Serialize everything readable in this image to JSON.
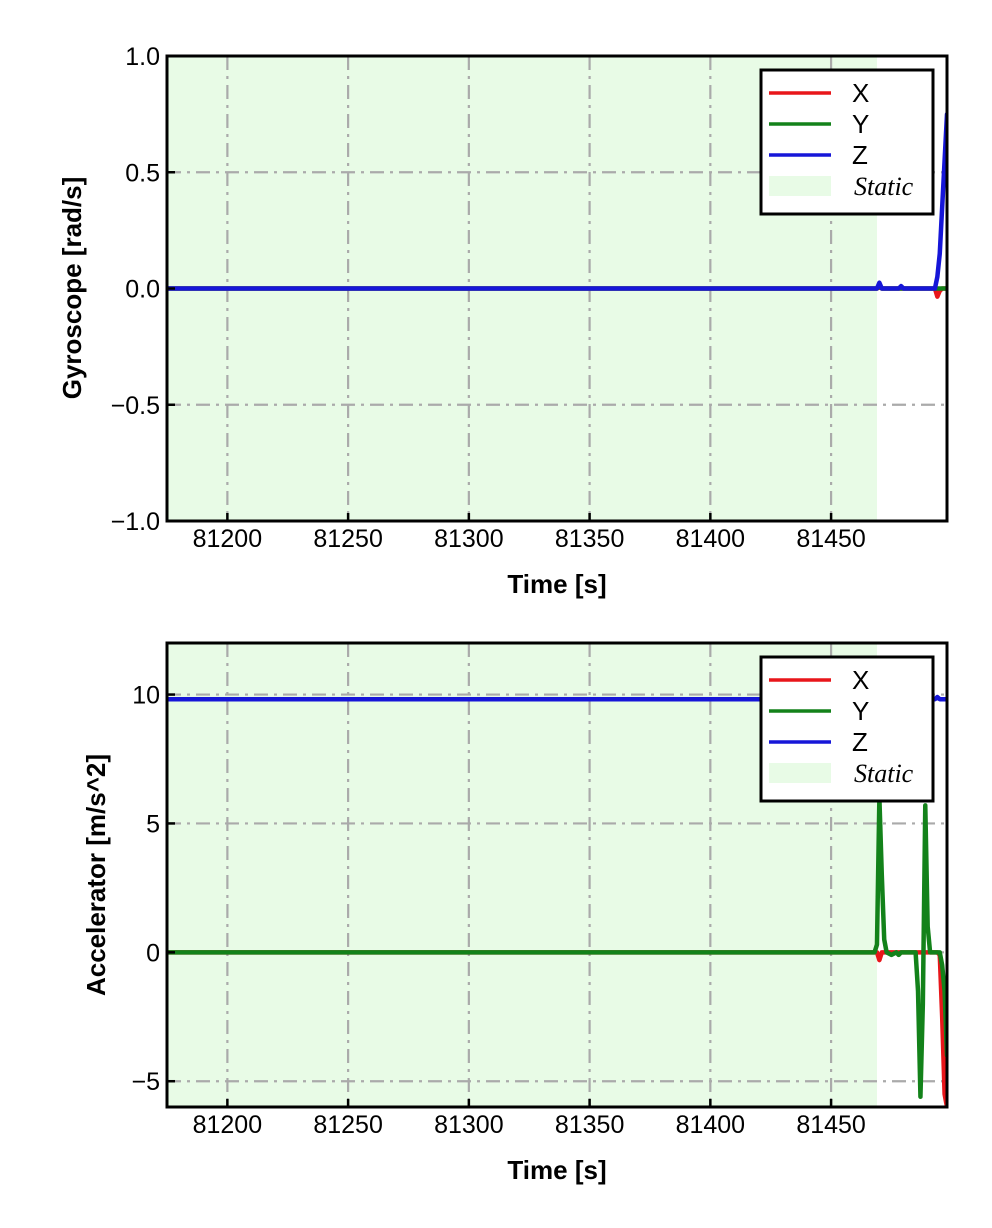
{
  "chart_data": [
    {
      "type": "line",
      "title": "",
      "xlabel": "Time [s]",
      "ylabel": "Gyroscope [rad/s]",
      "xlim": [
        81175,
        81498
      ],
      "ylim": [
        -1.0,
        1.0
      ],
      "xticks": [
        81200,
        81250,
        81300,
        81350,
        81400,
        81450
      ],
      "xtick_labels": [
        "81200",
        "81250",
        "81300",
        "81350",
        "81400",
        "81450"
      ],
      "yticks": [
        1.0,
        0.5,
        0.0,
        -0.5,
        -1.0
      ],
      "ytick_labels": [
        "1.0",
        "0.5",
        "0.0",
        "−0.5",
        "−1.0"
      ],
      "grid": true,
      "legend_position": "upper right",
      "static_region": {
        "label": "Static",
        "x": [
          81175,
          81469
        ],
        "color": "#e8fbe6"
      },
      "series": [
        {
          "name": "X",
          "color": "#e8161a",
          "x": [
            81175,
            81469,
            81470,
            81471,
            81480,
            81493,
            81494,
            81495,
            81496,
            81497,
            81498
          ],
          "y": [
            0.0,
            0.0,
            0.005,
            0.0,
            0.0,
            0.0,
            -0.035,
            -0.01,
            0.0,
            0.0,
            0.0
          ]
        },
        {
          "name": "Y",
          "color": "#13821a",
          "x": [
            81175,
            81469,
            81470,
            81471,
            81480,
            81493,
            81495,
            81498
          ],
          "y": [
            0.0,
            0.0,
            0.01,
            0.0,
            0.0,
            0.0,
            0.0,
            0.0
          ]
        },
        {
          "name": "Z",
          "color": "#1616d8",
          "x": [
            81175,
            81469,
            81470,
            81471,
            81478,
            81479,
            81480,
            81493,
            81494,
            81495,
            81496,
            81497,
            81498
          ],
          "y": [
            0.0,
            0.0,
            0.025,
            0.0,
            0.0,
            0.01,
            0.0,
            0.0,
            0.05,
            0.15,
            0.35,
            0.55,
            0.75
          ]
        }
      ]
    },
    {
      "type": "line",
      "title": "",
      "xlabel": "Time [s]",
      "ylabel": "Accelerator [m/s^2]",
      "xlim": [
        81175,
        81498
      ],
      "ylim": [
        -6.0,
        12.0
      ],
      "xticks": [
        81200,
        81250,
        81300,
        81350,
        81400,
        81450
      ],
      "xtick_labels": [
        "81200",
        "81250",
        "81300",
        "81350",
        "81400",
        "81450"
      ],
      "yticks": [
        10,
        5,
        0,
        -5
      ],
      "ytick_labels": [
        "10",
        "5",
        "0",
        "−5"
      ],
      "grid": true,
      "legend_position": "upper right",
      "static_region": {
        "label": "Static",
        "x": [
          81175,
          81469
        ],
        "color": "#e8fbe6"
      },
      "series": [
        {
          "name": "X",
          "color": "#e8161a",
          "x": [
            81175,
            81469,
            81470,
            81471,
            81472,
            81480,
            81494,
            81495,
            81496,
            81497,
            81498
          ],
          "y": [
            0.0,
            0.0,
            -0.3,
            0.0,
            0.0,
            0.0,
            0.0,
            -0.1,
            -2.5,
            -5.5,
            -6.0
          ]
        },
        {
          "name": "Y",
          "color": "#13821a",
          "x": [
            81175,
            81468,
            81469,
            81470,
            81471,
            81472,
            81473,
            81475,
            81477,
            81478,
            81479,
            81480,
            81484,
            81485,
            81486,
            81487,
            81488,
            81489,
            81490,
            81491,
            81492,
            81493,
            81494,
            81495,
            81496,
            81497,
            81498
          ],
          "y": [
            0.0,
            0.0,
            0.3,
            6.0,
            3.0,
            0.5,
            0.0,
            -0.1,
            0.0,
            -0.1,
            0.0,
            0.0,
            0.0,
            0.0,
            -1.5,
            -5.6,
            -2.0,
            5.7,
            1.0,
            0.0,
            0.0,
            0.0,
            0.0,
            0.0,
            -0.5,
            -1.5,
            -4.0
          ]
        },
        {
          "name": "Z",
          "color": "#1616d8",
          "x": [
            81175,
            81468,
            81469,
            81470,
            81478,
            81479,
            81480,
            81493,
            81494,
            81495,
            81498
          ],
          "y": [
            9.82,
            9.82,
            9.95,
            9.8,
            9.8,
            9.9,
            9.82,
            9.82,
            9.9,
            9.82,
            9.82
          ]
        }
      ]
    }
  ]
}
